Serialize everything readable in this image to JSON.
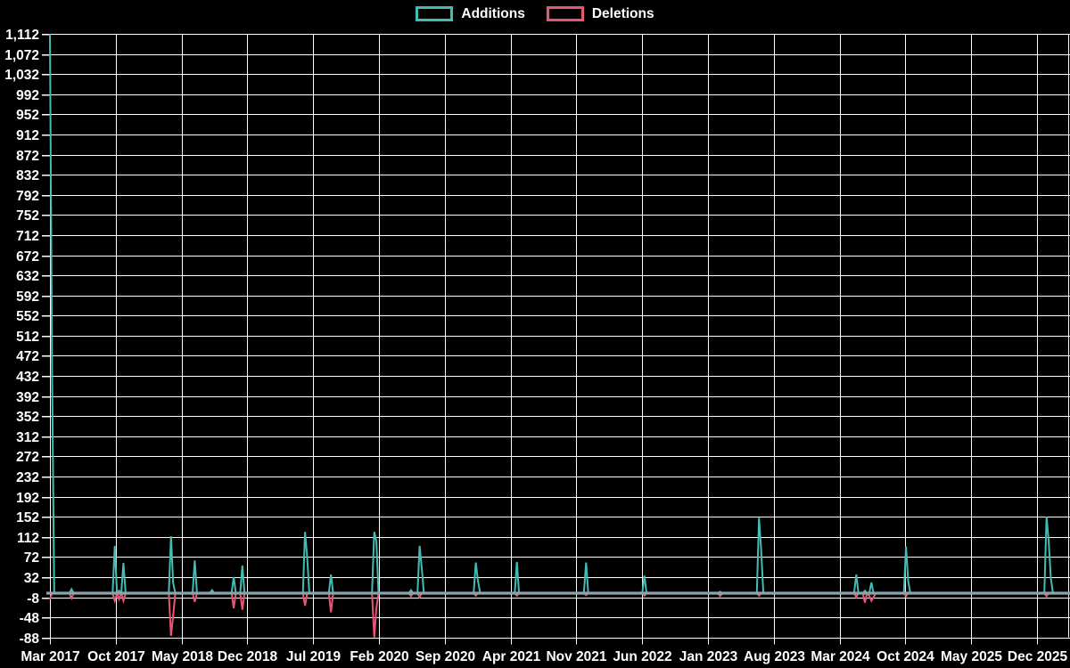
{
  "chart_data": {
    "type": "line",
    "title": "",
    "background_color": "#000000",
    "grid_color": "#ffffff",
    "text_color": "#ffffff",
    "zero_line_color": "#8ca3ad",
    "legend": {
      "position": "top-center",
      "items": [
        "Additions",
        "Deletions"
      ]
    },
    "x_axis": {
      "labels": [
        "Mar 2017",
        "Oct 2017",
        "May 2018",
        "Dec 2018",
        "Jul 2019",
        "Feb 2020",
        "Sep 2020",
        "Apr 2021",
        "Nov 2021",
        "Jun 2022",
        "Jan 2023",
        "Aug 2023",
        "Mar 2024",
        "Oct 2024",
        "May 2025",
        "Dec 2025"
      ],
      "unit": "week",
      "total_weeks": 472,
      "weeks_per_label_interval": 30.44
    },
    "y_axis": {
      "min": -88,
      "max": 1112,
      "step": 40,
      "ticks": [
        -88,
        -48,
        -8,
        32,
        72,
        112,
        152,
        192,
        232,
        272,
        312,
        352,
        392,
        432,
        472,
        512,
        552,
        592,
        632,
        672,
        712,
        752,
        792,
        832,
        872,
        912,
        952,
        992,
        1032,
        1072,
        1112
      ]
    },
    "series": [
      {
        "name": "Additions",
        "color": "#42bdb5"
      },
      {
        "name": "Deletions",
        "color": "#ea5672"
      }
    ],
    "baseline_value": 0,
    "spikes": [
      {
        "week": 0,
        "additions": 1112,
        "deletions": -12
      },
      {
        "week": 1,
        "additions": 439,
        "deletions": 0
      },
      {
        "week": 10,
        "additions": 8,
        "deletions": -10
      },
      {
        "week": 30,
        "additions": 94,
        "deletions": -15
      },
      {
        "week": 32,
        "additions": 5,
        "deletions": -12
      },
      {
        "week": 34,
        "additions": 60,
        "deletions": -15
      },
      {
        "week": 56,
        "additions": 113,
        "deletions": -85
      },
      {
        "week": 57,
        "additions": 20,
        "deletions": -45
      },
      {
        "week": 67,
        "additions": 65,
        "deletions": -17
      },
      {
        "week": 75,
        "additions": 6,
        "deletions": 0
      },
      {
        "week": 85,
        "additions": 32,
        "deletions": -30
      },
      {
        "week": 89,
        "additions": 55,
        "deletions": -33
      },
      {
        "week": 118,
        "additions": 122,
        "deletions": -25
      },
      {
        "week": 119,
        "additions": 72,
        "deletions": 0
      },
      {
        "week": 130,
        "additions": 37,
        "deletions": -38
      },
      {
        "week": 150,
        "additions": 122,
        "deletions": -88
      },
      {
        "week": 151,
        "additions": 103,
        "deletions": -30
      },
      {
        "week": 167,
        "additions": 6,
        "deletions": -6
      },
      {
        "week": 171,
        "additions": 94,
        "deletions": -8
      },
      {
        "week": 172,
        "additions": 50,
        "deletions": 0
      },
      {
        "week": 197,
        "additions": 61,
        "deletions": -5
      },
      {
        "week": 198,
        "additions": 25,
        "deletions": 0
      },
      {
        "week": 216,
        "additions": 62,
        "deletions": -5
      },
      {
        "week": 248,
        "additions": 61,
        "deletions": -4
      },
      {
        "week": 275,
        "additions": 35,
        "deletions": -5
      },
      {
        "week": 310,
        "additions": 3,
        "deletions": -6
      },
      {
        "week": 328,
        "additions": 150,
        "deletions": -5
      },
      {
        "week": 329,
        "additions": 87,
        "deletions": 0
      },
      {
        "week": 373,
        "additions": 37,
        "deletions": -8
      },
      {
        "week": 377,
        "additions": 5,
        "deletions": -19
      },
      {
        "week": 379,
        "additions": 0,
        "deletions": -5
      },
      {
        "week": 380,
        "additions": 21,
        "deletions": -15
      },
      {
        "week": 381,
        "additions": 0,
        "deletions": -8
      },
      {
        "week": 396,
        "additions": 93,
        "deletions": -6
      },
      {
        "week": 397,
        "additions": 25,
        "deletions": 0
      },
      {
        "week": 461,
        "additions": 152,
        "deletions": -6
      },
      {
        "week": 462,
        "additions": 103,
        "deletions": 0
      },
      {
        "week": 463,
        "additions": 30,
        "deletions": 0
      }
    ]
  }
}
